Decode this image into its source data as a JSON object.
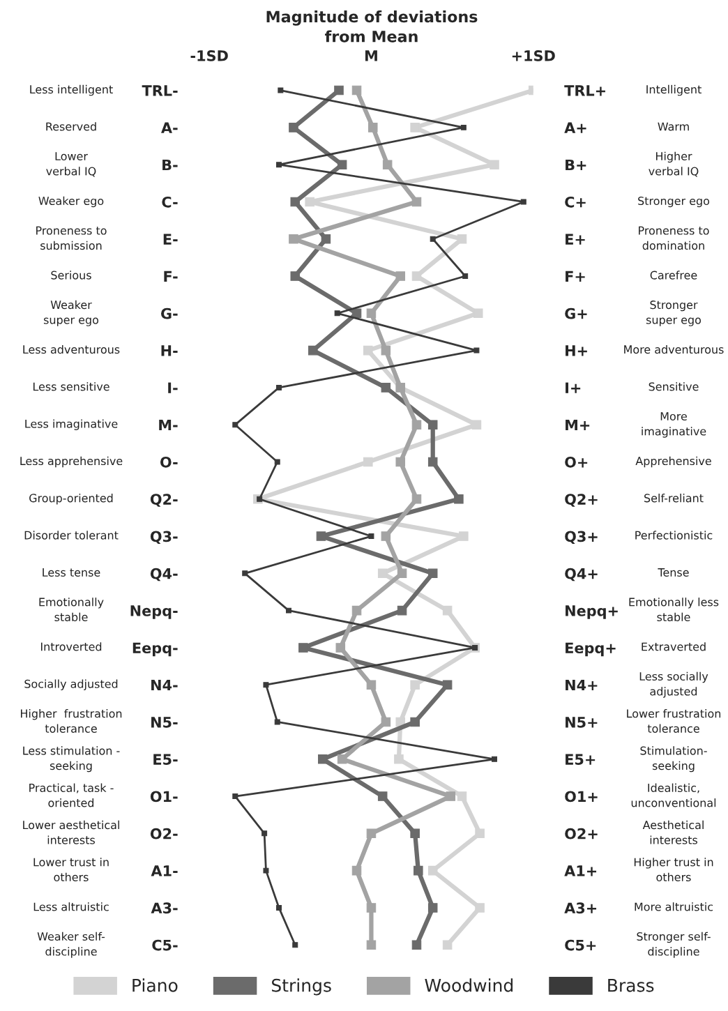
{
  "chart_data": {
    "type": "line",
    "title": "Magnitude of deviations\nfrom Mean",
    "orientation": "horizontal",
    "categories": [
      "TRL-",
      "A-",
      "B-",
      "C-",
      "E-",
      "F-",
      "G-",
      "H-",
      "I-",
      "M-",
      "O-",
      "Q2-",
      "Q3-",
      "Q4-",
      "Nepq-",
      "Eepq-",
      "N4-",
      "N5-",
      "E5-",
      "O1-",
      "O2-",
      "A1-",
      "A3-",
      "C5-"
    ],
    "y2_categories": [
      "TRL+",
      "A+",
      "B+",
      "C+",
      "E+",
      "F+",
      "G+",
      "H+",
      "I+",
      "M+",
      "O+",
      "Q2+",
      "Q3+",
      "Q4+",
      "Nepq+",
      "Eepq+",
      "N4+",
      "N5+",
      "E5+",
      "O1+",
      "O2+",
      "A1+",
      "A3+",
      "C5+"
    ],
    "xlim": [
      -1,
      1
    ],
    "xticks": [
      {
        "value": -1,
        "label": "-1SD"
      },
      {
        "value": 0,
        "label": "M"
      },
      {
        "value": 1,
        "label": "+1SD"
      }
    ],
    "series": [
      {
        "name": "Piano",
        "color": "#d3d3d3",
        "values": [
          1.0,
          0.27,
          0.76,
          -0.38,
          0.56,
          0.28,
          0.66,
          -0.02,
          0.18,
          0.65,
          -0.02,
          -0.7,
          0.57,
          0.07,
          0.47,
          0.64,
          0.27,
          0.18,
          0.17,
          0.56,
          0.67,
          0.38,
          0.67,
          0.47
        ]
      },
      {
        "name": "Strings",
        "color": "#6b6b6b",
        "values": [
          -0.2,
          -0.48,
          -0.18,
          -0.47,
          -0.28,
          -0.47,
          -0.09,
          -0.36,
          0.09,
          0.38,
          0.38,
          0.54,
          -0.31,
          0.38,
          0.19,
          -0.42,
          0.47,
          0.27,
          -0.3,
          0.07,
          0.27,
          0.29,
          0.38,
          0.28
        ]
      },
      {
        "name": "Woodwind",
        "color": "#a3a3a3",
        "values": [
          -0.09,
          0.01,
          0.1,
          0.28,
          -0.48,
          0.18,
          0.0,
          0.09,
          0.18,
          0.28,
          0.18,
          0.28,
          0.09,
          0.19,
          -0.09,
          -0.19,
          0.0,
          0.09,
          -0.18,
          0.49,
          0.0,
          -0.09,
          0.0,
          0.0
        ]
      },
      {
        "name": "Brass",
        "color": "#3a3a3a",
        "values": [
          -0.56,
          0.57,
          -0.57,
          0.94,
          0.38,
          0.58,
          -0.21,
          0.65,
          -0.57,
          -0.84,
          -0.58,
          -0.69,
          0.0,
          -0.78,
          -0.51,
          0.64,
          -0.65,
          -0.58,
          0.76,
          -0.84,
          -0.66,
          -0.65,
          -0.57,
          -0.47
        ]
      }
    ],
    "marker": "square",
    "line_style": "solid",
    "grid": false,
    "legend": "bottom",
    "annotations": [
      "Less intelligent",
      "Reserved",
      "Lower\nverbal IQ",
      "Weaker ego",
      "Proneness to\nsubmission",
      "Serious",
      "Weaker\nsuper ego",
      "Less adventurous",
      "Less sensitive",
      "Less imaginative",
      "Less apprehensive",
      "Group-oriented",
      "Disorder tolerant",
      "Less tense",
      "Emotionally\nstable",
      "Introverted",
      "Socially adjusted",
      "Higher  frustration\ntolerance",
      "Less stimulation -\nseeking",
      "Practical, task -\noriented",
      "Lower aesthetical\ninterests",
      "Lower trust in\nothers",
      "Less altruistic",
      "Weaker self-\ndiscipline",
      "Intelligent",
      "Warm",
      "Higher\nverbal IQ",
      "Stronger ego",
      "Proneness to\ndomination",
      "Carefree",
      "Stronger\nsuper ego",
      "More adventurous",
      "Sensitive",
      "More\nimaginative",
      "Apprehensive",
      "Self-reliant",
      "Perfectionistic",
      "Tense",
      "Emotionally less\nstable",
      "Extraverted",
      "Less socially\nadjusted",
      "Lower frustration\ntolerance",
      "Stimulation-\nseeking",
      "Idealistic,\nunconventional",
      "Aesthetical\ninterests",
      "Higher trust in\nothers",
      "More altruistic",
      "Stronger self-\ndiscipline"
    ]
  }
}
